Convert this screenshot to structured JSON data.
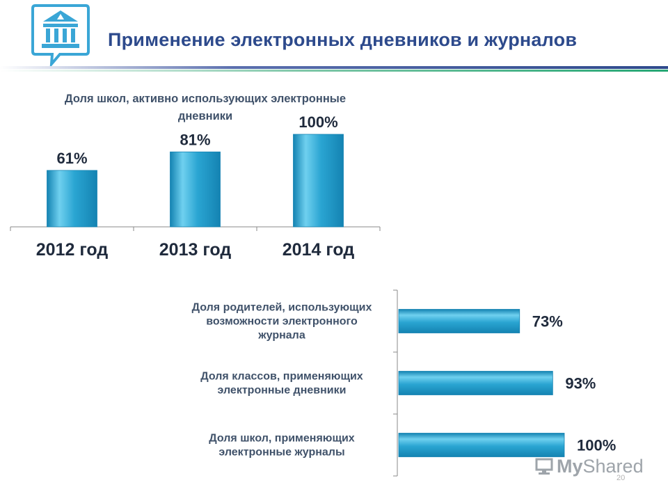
{
  "slide": {
    "title": "Применение электронных дневников и журналов",
    "page_number": "20"
  },
  "watermark": {
    "lead": "My",
    "rest": "Shared"
  },
  "colors": {
    "bar": "#2aa5d2",
    "bar_light": "#6fd0ef",
    "bar_dark": "#1483b2",
    "title": "#2d4a8c",
    "axis": "#8a8a8a",
    "label": "#1f2a3c"
  },
  "chart_data": [
    {
      "type": "bar",
      "title": "Доля школ, активно использующих электронные дневники",
      "categories": [
        "2012 год",
        "2013 год",
        "2014 год"
      ],
      "values": [
        61,
        81,
        100
      ],
      "data_labels": [
        "61%",
        "81%",
        "100%"
      ],
      "ylim": [
        0,
        100
      ],
      "xlabel": "",
      "ylabel": "",
      "grid": false,
      "legend": "none"
    },
    {
      "type": "bar",
      "orientation": "horizontal",
      "categories": [
        "Доля родителей, использующих возможности электронного журнала",
        "Доля классов, применяющих электронные дневники",
        "Доля школ, применяющих электронные журналы"
      ],
      "category_lines": [
        [
          "Доля родителей, использующих",
          "возможности электронного",
          "журнала"
        ],
        [
          "Доля классов, применяющих",
          "электронные дневники"
        ],
        [
          "Доля школ, применяющих",
          "электронные журналы"
        ]
      ],
      "values": [
        73,
        93,
        100
      ],
      "data_labels": [
        "73%",
        "93%",
        "100%"
      ],
      "xlim": [
        0,
        100
      ],
      "grid": false,
      "legend": "none"
    }
  ]
}
